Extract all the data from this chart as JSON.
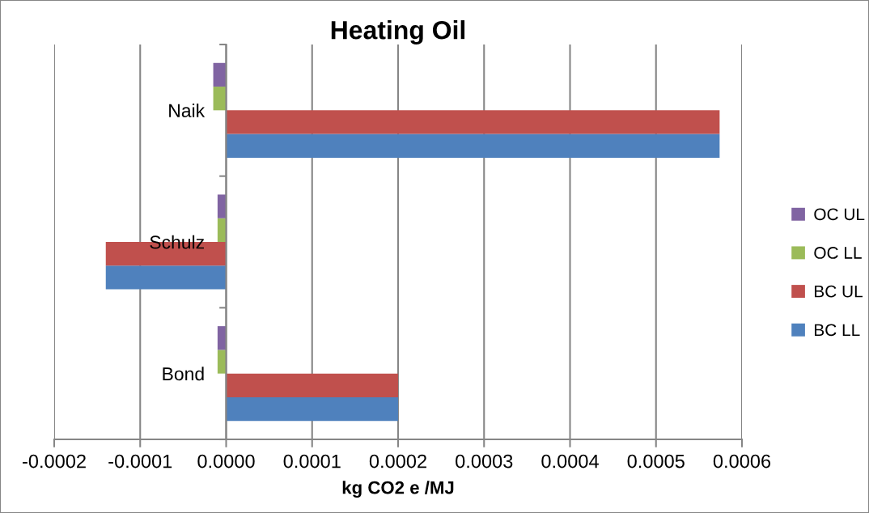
{
  "chart_data": {
    "type": "bar",
    "orientation": "horizontal",
    "title": "Heating Oil",
    "xlabel": "kg CO2 e /MJ",
    "categories": [
      "Naik",
      "Schulz",
      "Bond"
    ],
    "series": [
      {
        "name": "BC LL",
        "color": "#4f81bd",
        "values": [
          0.000574,
          -0.00014,
          0.0002
        ]
      },
      {
        "name": "BC UL",
        "color": "#c0504d",
        "values": [
          0.000574,
          -0.00014,
          0.0002
        ]
      },
      {
        "name": "OC LL",
        "color": "#9bbb59",
        "values": [
          -1.5e-05,
          -1e-05,
          -1e-05
        ]
      },
      {
        "name": "OC UL",
        "color": "#8064a2",
        "values": [
          -1.5e-05,
          -1e-05,
          -1e-05
        ]
      }
    ],
    "xlim": [
      -0.0002,
      0.0006
    ],
    "xticks": [
      {
        "value": -0.0002,
        "label": "-0.0002"
      },
      {
        "value": -0.0001,
        "label": "-0.0001"
      },
      {
        "value": 0,
        "label": "0.0000"
      },
      {
        "value": 0.0001,
        "label": "0.0001"
      },
      {
        "value": 0.0002,
        "label": "0.0002"
      },
      {
        "value": 0.0003,
        "label": "0.0003"
      },
      {
        "value": 0.0004,
        "label": "0.0004"
      },
      {
        "value": 0.0005,
        "label": "0.0005"
      },
      {
        "value": 0.0006,
        "label": "0.0006"
      }
    ],
    "grid": "x",
    "legend": "right"
  }
}
